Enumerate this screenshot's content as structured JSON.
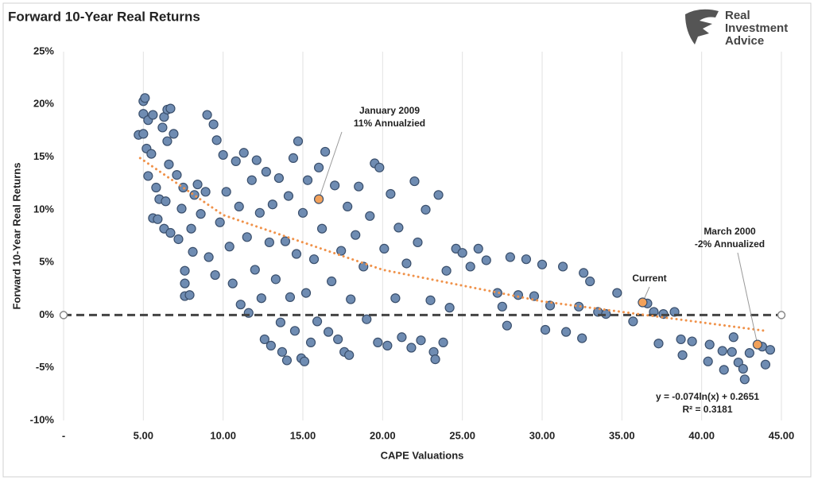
{
  "chart_data": {
    "type": "scatter",
    "title": "Forward 10-Year Real Returns",
    "x_label": "CAPE Valuations",
    "y_label": "Forward 10-Year Real Returns",
    "logo": [
      "Real",
      "Investment",
      "Advice"
    ],
    "xlim": [
      0,
      45
    ],
    "ylim": [
      -10,
      25
    ],
    "xticks": [
      {
        "value": 0,
        "label": "-"
      },
      {
        "value": 5,
        "label": "5.00"
      },
      {
        "value": 10,
        "label": "10.00"
      },
      {
        "value": 15,
        "label": "15.00"
      },
      {
        "value": 20,
        "label": "20.00"
      },
      {
        "value": 25,
        "label": "25.00"
      },
      {
        "value": 30,
        "label": "30.00"
      },
      {
        "value": 35,
        "label": "35.00"
      },
      {
        "value": 40,
        "label": "40.00"
      },
      {
        "value": 45,
        "label": "45.00"
      }
    ],
    "yticks": [
      {
        "value": -10,
        "label": "-10%"
      },
      {
        "value": -5,
        "label": "-5%"
      },
      {
        "value": 0,
        "label": "0%"
      },
      {
        "value": 5,
        "label": "5%"
      },
      {
        "value": 10,
        "label": "10%"
      },
      {
        "value": 15,
        "label": "15%"
      },
      {
        "value": 20,
        "label": "20%"
      },
      {
        "value": 25,
        "label": "25%"
      }
    ],
    "xgrid": true,
    "series": [
      {
        "color": "#6f8cb2",
        "x": [
          5.0,
          5.1,
          5.0,
          5.3,
          5.6,
          4.7,
          5.0,
          5.2,
          5.5,
          5.3,
          5.6,
          5.9,
          6.0,
          5.8,
          6.2,
          6.3,
          6.5,
          6.7,
          6.9,
          6.5,
          6.6,
          6.4,
          6.3,
          6.7,
          7.2,
          7.4,
          7.1,
          7.5,
          7.6,
          7.6,
          7.6,
          7.9,
          8.0,
          8.1,
          8.2,
          8.4,
          8.6,
          8.9,
          9.0,
          9.1,
          9.4,
          9.6,
          9.5,
          9.8,
          10.0,
          10.2,
          10.4,
          10.6,
          10.8,
          11.0,
          11.1,
          11.3,
          11.5,
          11.6,
          11.8,
          12.0,
          12.1,
          12.3,
          12.4,
          12.6,
          12.7,
          12.9,
          13.0,
          13.1,
          13.3,
          13.5,
          13.6,
          13.7,
          13.9,
          14.0,
          14.1,
          14.2,
          14.4,
          14.5,
          14.6,
          14.7,
          14.9,
          15.0,
          15.1,
          15.2,
          15.3,
          15.5,
          15.7,
          15.9,
          16.0,
          16.2,
          16.4,
          16.6,
          16.8,
          17.0,
          17.2,
          17.4,
          17.6,
          17.8,
          17.9,
          18.0,
          18.3,
          18.5,
          18.8,
          19.0,
          19.2,
          19.5,
          19.7,
          19.8,
          20.1,
          20.3,
          20.5,
          20.8,
          21.0,
          21.2,
          21.5,
          21.8,
          22.0,
          22.2,
          22.4,
          22.7,
          23.0,
          23.2,
          23.3,
          23.5,
          23.8,
          24.0,
          24.2,
          24.6,
          25.0,
          25.5,
          26.0,
          26.5,
          27.2,
          27.5,
          27.8,
          28.0,
          28.5,
          29.0,
          29.5,
          30.0,
          30.2,
          30.5,
          31.3,
          31.5,
          32.3,
          32.5,
          32.6,
          33.0,
          33.5,
          34.0,
          34.7,
          35.7,
          36.6,
          37.0,
          37.3,
          37.6,
          38.3,
          38.7,
          38.8,
          39.4,
          40.4,
          40.5,
          41.3,
          41.4,
          41.9,
          42.0,
          42.3,
          42.6,
          42.7,
          43.0,
          43.8,
          44.0,
          44.3
        ],
        "values": [
          20.3,
          20.6,
          19.1,
          18.5,
          19.0,
          17.1,
          17.2,
          15.8,
          15.3,
          13.2,
          9.2,
          9.1,
          11.0,
          12.1,
          17.8,
          18.8,
          19.5,
          19.6,
          17.2,
          16.5,
          14.3,
          10.8,
          8.2,
          7.8,
          7.2,
          10.1,
          13.3,
          12.1,
          4.2,
          3.0,
          1.8,
          1.9,
          8.2,
          6.0,
          11.4,
          12.4,
          9.6,
          11.7,
          19.0,
          5.5,
          18.1,
          16.6,
          3.8,
          8.8,
          15.2,
          11.7,
          6.5,
          3.0,
          14.6,
          10.3,
          1.0,
          15.4,
          7.4,
          0.2,
          12.8,
          4.3,
          14.7,
          9.7,
          1.6,
          -2.3,
          13.6,
          6.9,
          -2.9,
          10.5,
          3.4,
          13.0,
          -0.7,
          -3.5,
          7.0,
          -4.3,
          11.3,
          1.7,
          14.9,
          -1.5,
          5.8,
          16.5,
          -4.1,
          9.7,
          -4.4,
          2.1,
          12.8,
          -2.6,
          5.3,
          -0.6,
          14.0,
          8.2,
          15.5,
          -1.6,
          3.2,
          12.3,
          -2.3,
          6.1,
          -3.5,
          10.3,
          -3.8,
          1.5,
          7.6,
          12.2,
          4.6,
          -0.4,
          9.4,
          14.4,
          -2.6,
          14.0,
          6.3,
          -2.9,
          11.5,
          1.6,
          8.3,
          -2.1,
          4.9,
          -3.1,
          12.7,
          6.9,
          -2.4,
          10.0,
          1.4,
          -3.5,
          -4.2,
          11.4,
          -2.6,
          4.2,
          0.7,
          6.3,
          5.9,
          4.6,
          6.3,
          5.2,
          2.1,
          0.8,
          -1.0,
          5.5,
          1.9,
          5.3,
          1.8,
          4.8,
          -1.4,
          0.9,
          4.6,
          -1.6,
          0.8,
          -2.2,
          4.0,
          3.2,
          0.3,
          0.1,
          2.1,
          -0.6,
          1.1,
          0.3,
          -2.7,
          0.1,
          0.3,
          -2.3,
          -3.8,
          -2.5,
          -4.4,
          -2.8,
          -3.4,
          -5.2,
          -3.5,
          -2.1,
          -4.5,
          -5.1,
          -6.1,
          -3.6,
          -3.0,
          -4.7,
          -3.3
        ]
      }
    ],
    "trendline": {
      "color": "#f0924a",
      "x": [
        4.8,
        10,
        20,
        30,
        44
      ],
      "values": [
        14.9,
        9.5,
        4.3,
        1.3,
        -1.5
      ]
    },
    "highlight_color": "#f2a15a",
    "highlights": [
      {
        "x": 16.0,
        "y": 11.0,
        "lines": [
          "January 2009",
          "11% Annualzied"
        ]
      },
      {
        "x": 36.3,
        "y": 1.2,
        "lines": [
          "Current"
        ]
      },
      {
        "x": 43.5,
        "y": -2.8,
        "lines": [
          "March 2000",
          "-2% Annualized"
        ]
      }
    ],
    "equation": [
      "y = -0.074ln(x) + 0.2651",
      "R² = 0.3181"
    ]
  }
}
